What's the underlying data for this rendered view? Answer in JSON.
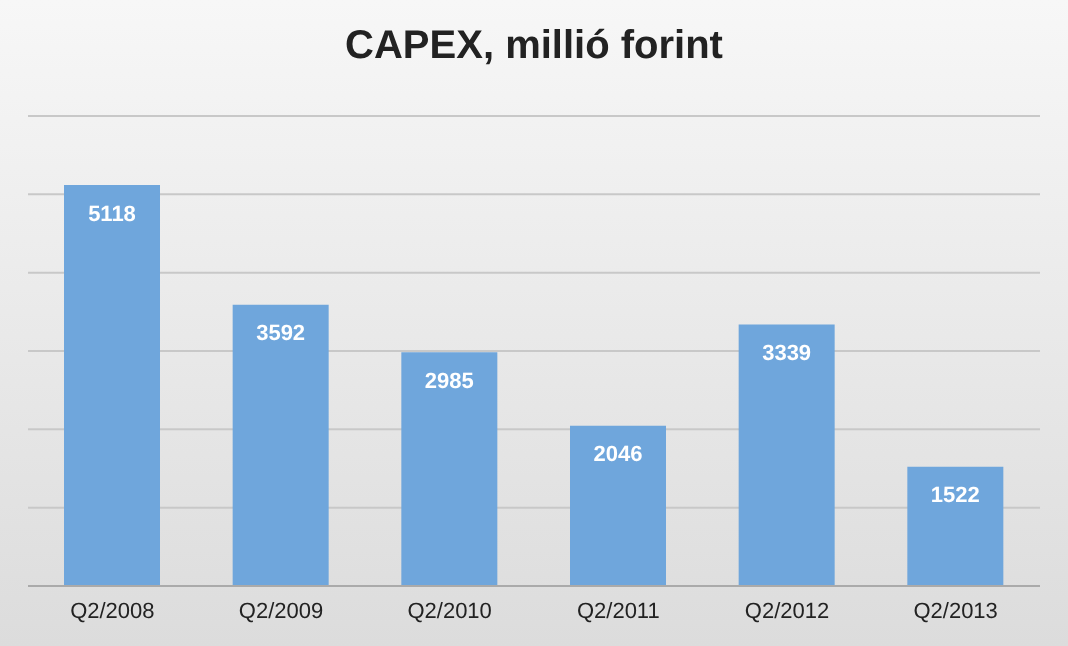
{
  "chart_data": {
    "type": "bar",
    "title": "CAPEX, millió forint",
    "categories": [
      "Q2/2008",
      "Q2/2009",
      "Q2/2010",
      "Q2/2011",
      "Q2/2012",
      "Q2/2013"
    ],
    "values": [
      5118,
      3592,
      2985,
      2046,
      3339,
      1522
    ],
    "color": "#6fa6dc",
    "ylim": [
      0,
      6000
    ],
    "yticks": [
      {
        "value": 0,
        "label": null
      },
      {
        "value": 1000,
        "label": null
      },
      {
        "value": 2000,
        "label": null
      },
      {
        "value": 3000,
        "label": null
      },
      {
        "value": 4000,
        "label": null
      },
      {
        "value": 5000,
        "label": null
      },
      {
        "value": 6000,
        "label": null
      }
    ],
    "tick_labels": "x",
    "grid": "y",
    "data_labels": true
  }
}
